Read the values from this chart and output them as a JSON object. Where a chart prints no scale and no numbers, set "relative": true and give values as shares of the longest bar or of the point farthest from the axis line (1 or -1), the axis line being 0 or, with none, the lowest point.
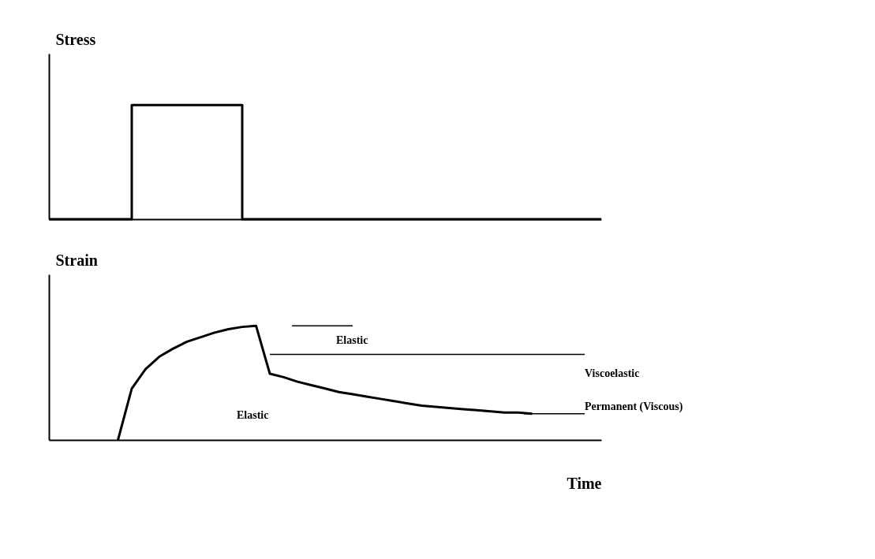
{
  "chart_data": [
    {
      "type": "step",
      "relative": true,
      "ylabel": "Stress",
      "tick_labels": false,
      "grid": false,
      "categories": [
        null,
        null,
        null,
        null,
        null,
        null,
        null,
        null,
        null,
        null,
        null,
        null,
        null,
        null,
        null,
        null,
        null,
        null,
        null,
        null,
        null
      ],
      "series": [
        {
          "color": "#000000",
          "values": [
            0,
            0,
            0,
            1,
            1,
            1,
            1,
            0,
            0,
            0,
            0,
            0,
            0,
            0,
            0,
            0,
            0,
            0,
            0,
            0,
            0
          ]
        }
      ]
    },
    {
      "type": "line",
      "relative": true,
      "ylabel": "Strain",
      "xlabel": "Time",
      "tick_labels": false,
      "grid": false,
      "categories": [
        null,
        null,
        null,
        null,
        null,
        null,
        null,
        null,
        null,
        null,
        null,
        null,
        null,
        null,
        null,
        null,
        null,
        null,
        null,
        null,
        null,
        null,
        null,
        null,
        null,
        null,
        null,
        null,
        null,
        null,
        null,
        null,
        null,
        null,
        null,
        null,
        null,
        null,
        null,
        null,
        null
      ],
      "series": [
        {
          "color": "#000000",
          "values": [
            null,
            null,
            null,
            null,
            null,
            0,
            0.45,
            0.62,
            0.73,
            0.8,
            0.86,
            0.9,
            0.94,
            0.97,
            0.99,
            1.0,
            0.58,
            0.55,
            0.51,
            0.48,
            0.45,
            0.42,
            0.4,
            0.38,
            0.36,
            0.34,
            0.32,
            0.3,
            0.29,
            0.28,
            0.27,
            0.26,
            0.25,
            0.24,
            0.24,
            0.23,
            null,
            null,
            null,
            null,
            null
          ]
        }
      ],
      "ref_lines": [
        {
          "axis": "y",
          "value": 1.0
        },
        {
          "axis": "y",
          "value": 0.75
        },
        {
          "axis": "y",
          "value": 0.23
        }
      ],
      "annotations": [
        "Elastic",
        "Viscoelastic",
        "Elastic",
        "Permanent (Viscous)"
      ]
    }
  ]
}
